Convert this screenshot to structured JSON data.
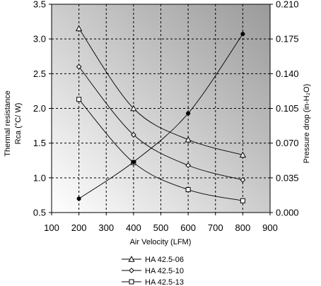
{
  "chart_data": {
    "type": "line",
    "xlabel": "Air Velocity (LFM)",
    "ylabel_left": [
      "Thermal resistance",
      "Rca (°C/ W)"
    ],
    "ylabel_right": "Pressure drop (in-H₂O)",
    "xlim": [
      100,
      900
    ],
    "xticks": [
      "100",
      "200",
      "300",
      "400",
      "500",
      "600",
      "700",
      "800",
      "900"
    ],
    "ylim_left": [
      0.5,
      3.5
    ],
    "yticks_left": [
      "0.5",
      "1.0",
      "1.5",
      "2.0",
      "2.5",
      "3.0",
      "3.5"
    ],
    "ylim_right": [
      0,
      0.21
    ],
    "yticks_right": [
      "0.000",
      "0.035",
      "0.070",
      "0.105",
      "0.140",
      "0.175",
      "0.210"
    ],
    "grid": true,
    "legend_position": "bottom-center",
    "background_gradient": [
      "#ffffff",
      "#9a9a9a"
    ],
    "series": [
      {
        "name": "HA 42.5-06",
        "marker": "triangle",
        "axis": "left",
        "x": [
          200,
          400,
          600,
          800
        ],
        "y": [
          3.15,
          2.0,
          1.55,
          1.33
        ]
      },
      {
        "name": "HA 42.5-10",
        "marker": "diamond",
        "axis": "left",
        "x": [
          200,
          400,
          600,
          800
        ],
        "y": [
          2.6,
          1.62,
          1.18,
          0.97
        ]
      },
      {
        "name": "HA 42.5-13",
        "marker": "square",
        "axis": "left",
        "x": [
          200,
          400,
          600,
          800
        ],
        "y": [
          2.13,
          1.22,
          0.83,
          0.67
        ]
      },
      {
        "marker": "filled-circle",
        "axis": "right",
        "x": [
          200,
          400,
          600,
          800
        ],
        "y": [
          0.014,
          0.051,
          0.1,
          0.18
        ]
      }
    ]
  }
}
